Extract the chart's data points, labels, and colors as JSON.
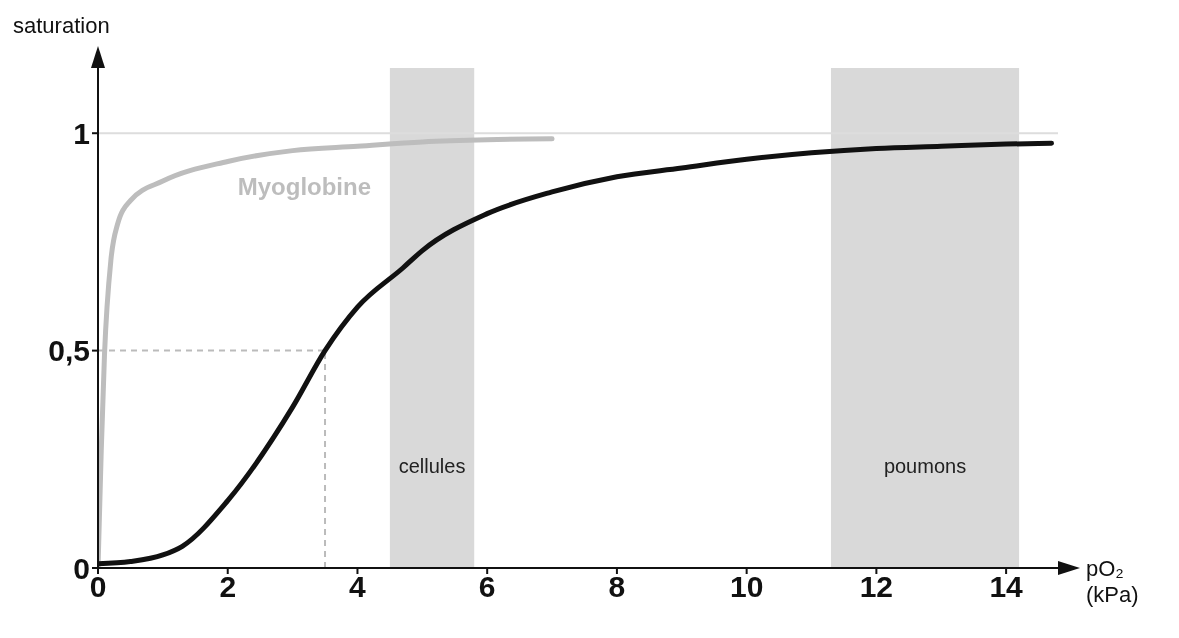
{
  "chart_data": {
    "type": "line",
    "xlabel": "pO₂ (kPa)",
    "ylabel": "saturation",
    "xlim": [
      0,
      14.8
    ],
    "ylim": [
      0,
      1.15
    ],
    "xticks": [
      0,
      2,
      4,
      6,
      8,
      10,
      12,
      14
    ],
    "yticks": [
      0,
      {
        "value": 0.5,
        "label": "0,5"
      },
      1
    ],
    "grid": false,
    "legend": false,
    "marker": "none",
    "line_style": "solid",
    "series": [
      {
        "name": "Myoglobine",
        "color": "#bdbdbd",
        "x": [
          0,
          0.05,
          0.1,
          0.2,
          0.3,
          0.5,
          1,
          2,
          3,
          4,
          5,
          6,
          7
        ],
        "values": [
          0,
          0.27,
          0.49,
          0.71,
          0.79,
          0.845,
          0.89,
          0.935,
          0.96,
          0.97,
          0.98,
          0.985,
          0.987
        ]
      },
      {
        "color": "#111111",
        "x": [
          0,
          0.5,
          1,
          1.3,
          2,
          3,
          3.5,
          4,
          4.7,
          5,
          6,
          7,
          8,
          9,
          10,
          11,
          12,
          13,
          14,
          14.7
        ],
        "values": [
          0.01,
          0.015,
          0.03,
          0.05,
          0.155,
          0.37,
          0.5,
          0.6,
          0.69,
          0.73,
          0.815,
          0.865,
          0.9,
          0.92,
          0.94,
          0.955,
          0.965,
          0.97,
          0.975,
          0.977
        ]
      }
    ],
    "bands": [
      {
        "axis": "x",
        "from": 4.5,
        "to": 5.8,
        "label": "cellules",
        "color": "#d9d9d9"
      },
      {
        "axis": "x",
        "from": 11.3,
        "to": 14.2,
        "label": "poumons",
        "color": "#d9d9d9"
      }
    ],
    "ref_lines": [
      {
        "axis": "y",
        "value": 1,
        "color": "#dddddd",
        "line_style": "solid"
      },
      {
        "axis": "y",
        "value": 0.5,
        "color": "#bbbbbb",
        "line_style": "dashed"
      },
      {
        "axis": "x",
        "value": 3.5,
        "color": "#bbbbbb",
        "line_style": "dashed"
      }
    ]
  }
}
